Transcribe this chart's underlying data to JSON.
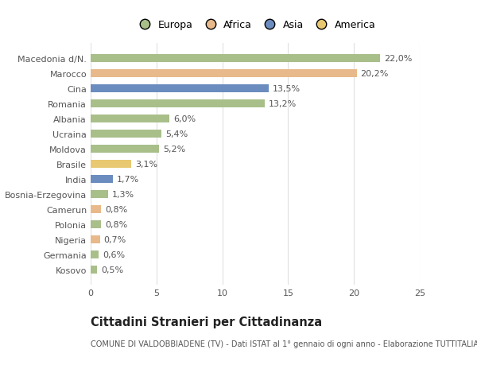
{
  "categories": [
    "Macedonia d/N.",
    "Marocco",
    "Cina",
    "Romania",
    "Albania",
    "Ucraina",
    "Moldova",
    "Brasile",
    "India",
    "Bosnia-Erzegovina",
    "Camerun",
    "Polonia",
    "Nigeria",
    "Germania",
    "Kosovo"
  ],
  "values": [
    22.0,
    20.2,
    13.5,
    13.2,
    6.0,
    5.4,
    5.2,
    3.1,
    1.7,
    1.3,
    0.8,
    0.8,
    0.7,
    0.6,
    0.5
  ],
  "labels": [
    "22,0%",
    "20,2%",
    "13,5%",
    "13,2%",
    "6,0%",
    "5,4%",
    "5,2%",
    "3,1%",
    "1,7%",
    "1,3%",
    "0,8%",
    "0,8%",
    "0,7%",
    "0,6%",
    "0,5%"
  ],
  "colors": [
    "#a8bf8a",
    "#e8b98a",
    "#6b8cbf",
    "#a8bf8a",
    "#a8bf8a",
    "#a8bf8a",
    "#a8bf8a",
    "#e8c870",
    "#6b8cbf",
    "#a8bf8a",
    "#e8b98a",
    "#a8bf8a",
    "#e8b98a",
    "#a8bf8a",
    "#a8bf8a"
  ],
  "legend_labels": [
    "Europa",
    "Africa",
    "Asia",
    "America"
  ],
  "legend_colors": [
    "#a8bf8a",
    "#e8b98a",
    "#6b8cbf",
    "#e8c870"
  ],
  "title": "Cittadini Stranieri per Cittadinanza",
  "subtitle": "COMUNE DI VALDOBBIADENE (TV) - Dati ISTAT al 1° gennaio di ogni anno - Elaborazione TUTTITALIA.IT",
  "xlim": [
    0,
    25
  ],
  "xticks": [
    0,
    5,
    10,
    15,
    20,
    25
  ],
  "bg_color": "#ffffff",
  "grid_color": "#e0e0e0",
  "bar_height": 0.55,
  "label_fontsize": 8,
  "tick_fontsize": 8,
  "title_fontsize": 10.5,
  "subtitle_fontsize": 7
}
